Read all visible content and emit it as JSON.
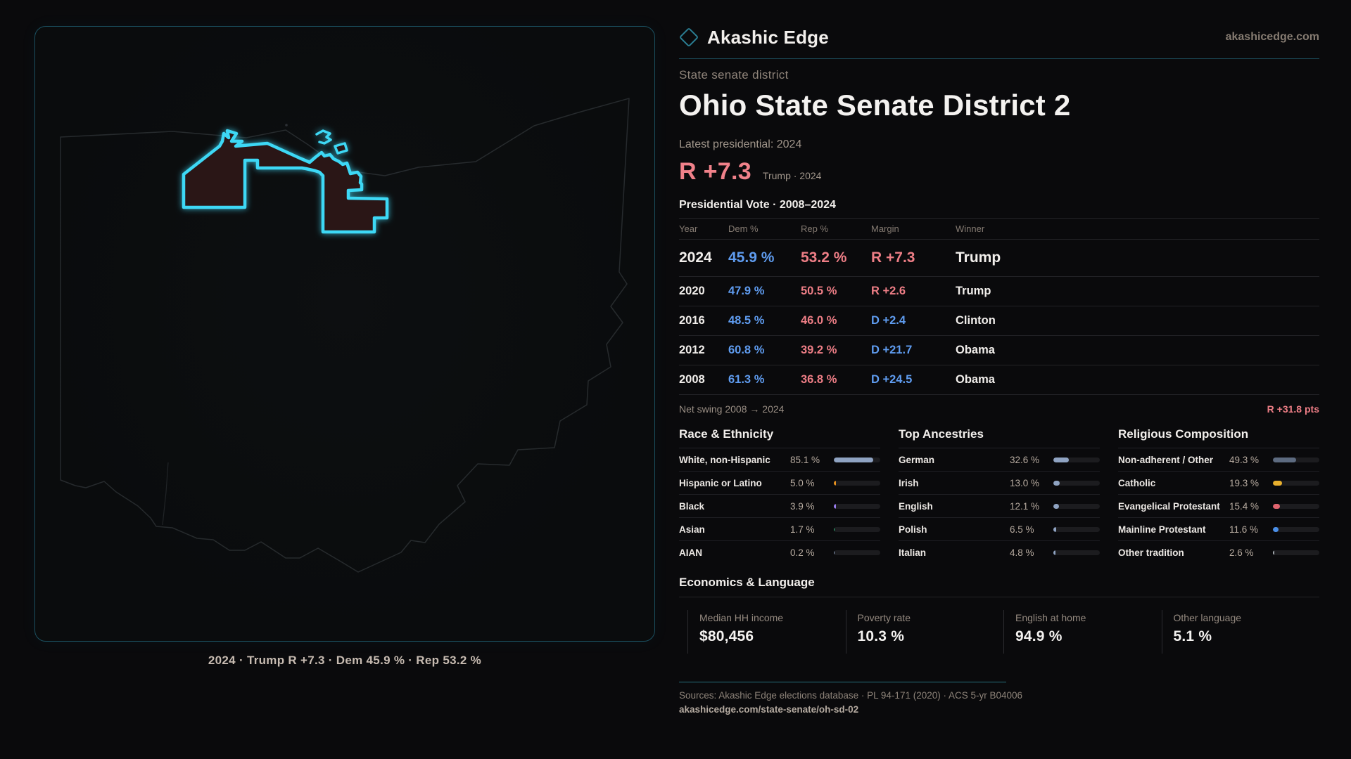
{
  "brand": {
    "name": "Akashic Edge",
    "domain": "akashicedge.com"
  },
  "header": {
    "eyebrow": "State senate district",
    "title": "Ohio State Senate District 2",
    "latest_label": "Latest presidential: 2024",
    "margin_value": "R +7.3",
    "margin_detail": "Trump · 2024"
  },
  "map": {
    "caption": "2024 · Trump R +7.3 · Dem 45.9 % · Rep 53.2 %",
    "district_color": "#3ed8f5",
    "district_fill": "#2a1316",
    "state_outline_color": "#4a4f55"
  },
  "vote_table": {
    "title": "Presidential Vote · 2008–2024",
    "columns": [
      "Year",
      "Dem %",
      "Rep %",
      "Margin",
      "Winner"
    ],
    "rows": [
      {
        "year": "2024",
        "dem": "45.9 %",
        "rep": "53.2 %",
        "margin": "R +7.3",
        "margin_party": "R",
        "winner": "Trump",
        "highlight": true
      },
      {
        "year": "2020",
        "dem": "47.9 %",
        "rep": "50.5 %",
        "margin": "R +2.6",
        "margin_party": "R",
        "winner": "Trump",
        "highlight": false
      },
      {
        "year": "2016",
        "dem": "48.5 %",
        "rep": "46.0 %",
        "margin": "D +2.4",
        "margin_party": "D",
        "winner": "Clinton",
        "highlight": false
      },
      {
        "year": "2012",
        "dem": "60.8 %",
        "rep": "39.2 %",
        "margin": "D +21.7",
        "margin_party": "D",
        "winner": "Obama",
        "highlight": false
      },
      {
        "year": "2008",
        "dem": "61.3 %",
        "rep": "36.8 %",
        "margin": "D +24.5",
        "margin_party": "D",
        "winner": "Obama",
        "highlight": false
      }
    ],
    "net_swing_label": "Net swing 2008 → 2024",
    "net_swing_value": "R +31.8 pts"
  },
  "demographics": {
    "race": {
      "title": "Race & Ethnicity",
      "rows": [
        {
          "label": "White, non-Hispanic",
          "value": "85.1 %",
          "pct": 85.1,
          "color": "#8fa3c2"
        },
        {
          "label": "Hispanic or Latino",
          "value": "5.0 %",
          "pct": 5.0,
          "color": "#e8921f"
        },
        {
          "label": "Black",
          "value": "3.9 %",
          "pct": 3.9,
          "color": "#9b7ef0"
        },
        {
          "label": "Asian",
          "value": "1.7 %",
          "pct": 1.7,
          "color": "#2ec27e"
        },
        {
          "label": "AIAN",
          "value": "0.2 %",
          "pct": 0.2,
          "color": "#8fa3c2"
        }
      ]
    },
    "ancestries": {
      "title": "Top Ancestries",
      "rows": [
        {
          "label": "German",
          "value": "32.6 %",
          "pct": 32.6,
          "color": "#8fa3c2"
        },
        {
          "label": "Irish",
          "value": "13.0 %",
          "pct": 13.0,
          "color": "#8fa3c2"
        },
        {
          "label": "English",
          "value": "12.1 %",
          "pct": 12.1,
          "color": "#8fa3c2"
        },
        {
          "label": "Polish",
          "value": "6.5 %",
          "pct": 6.5,
          "color": "#8fa3c2"
        },
        {
          "label": "Italian",
          "value": "4.8 %",
          "pct": 4.8,
          "color": "#8fa3c2"
        }
      ]
    },
    "religion": {
      "title": "Religious Composition",
      "rows": [
        {
          "label": "Non-adherent / Other",
          "value": "49.3 %",
          "pct": 49.3,
          "color": "#5d6b80"
        },
        {
          "label": "Catholic",
          "value": "19.3 %",
          "pct": 19.3,
          "color": "#e8b02e"
        },
        {
          "label": "Evangelical Protestant",
          "value": "15.4 %",
          "pct": 15.4,
          "color": "#e0646e"
        },
        {
          "label": "Mainline Protestant",
          "value": "11.6 %",
          "pct": 11.6,
          "color": "#4a8fe8"
        },
        {
          "label": "Other tradition",
          "value": "2.6 %",
          "pct": 2.6,
          "color": "#aab0b6"
        }
      ]
    }
  },
  "economics": {
    "title": "Economics & Language",
    "stats": [
      {
        "label": "Median HH income",
        "value": "$80,456"
      },
      {
        "label": "Poverty rate",
        "value": "10.3 %"
      },
      {
        "label": "English at home",
        "value": "94.9 %"
      },
      {
        "label": "Other language",
        "value": "5.1 %"
      }
    ]
  },
  "footer": {
    "sources": "Sources: Akashic Edge elections database · PL 94-171 (2020) · ACS 5-yr B04006",
    "url": "akashicedge.com/state-senate/oh-sd-02"
  },
  "chart_data": [
    {
      "type": "table",
      "title": "Presidential Vote · 2008–2024",
      "columns": [
        "Year",
        "Dem %",
        "Rep %",
        "Margin",
        "Winner"
      ],
      "rows": [
        [
          2024,
          45.9,
          53.2,
          "R +7.3",
          "Trump"
        ],
        [
          2020,
          47.9,
          50.5,
          "R +2.6",
          "Trump"
        ],
        [
          2016,
          48.5,
          46.0,
          "D +2.4",
          "Clinton"
        ],
        [
          2012,
          60.8,
          39.2,
          "D +21.7",
          "Obama"
        ],
        [
          2008,
          61.3,
          36.8,
          "D +24.5",
          "Obama"
        ]
      ],
      "annotation": "Net swing 2008 → 2024: R +31.8 pts"
    },
    {
      "type": "bar",
      "title": "Race & Ethnicity",
      "categories": [
        "White, non-Hispanic",
        "Hispanic or Latino",
        "Black",
        "Asian",
        "AIAN"
      ],
      "values": [
        85.1,
        5.0,
        3.9,
        1.7,
        0.2
      ],
      "xlim": [
        0,
        100
      ],
      "orientation": "horizontal"
    },
    {
      "type": "bar",
      "title": "Top Ancestries",
      "categories": [
        "German",
        "Irish",
        "English",
        "Polish",
        "Italian"
      ],
      "values": [
        32.6,
        13.0,
        12.1,
        6.5,
        4.8
      ],
      "xlim": [
        0,
        100
      ],
      "orientation": "horizontal"
    },
    {
      "type": "bar",
      "title": "Religious Composition",
      "categories": [
        "Non-adherent / Other",
        "Catholic",
        "Evangelical Protestant",
        "Mainline Protestant",
        "Other tradition"
      ],
      "values": [
        49.3,
        19.3,
        15.4,
        11.6,
        2.6
      ],
      "xlim": [
        0,
        100
      ],
      "orientation": "horizontal"
    }
  ]
}
